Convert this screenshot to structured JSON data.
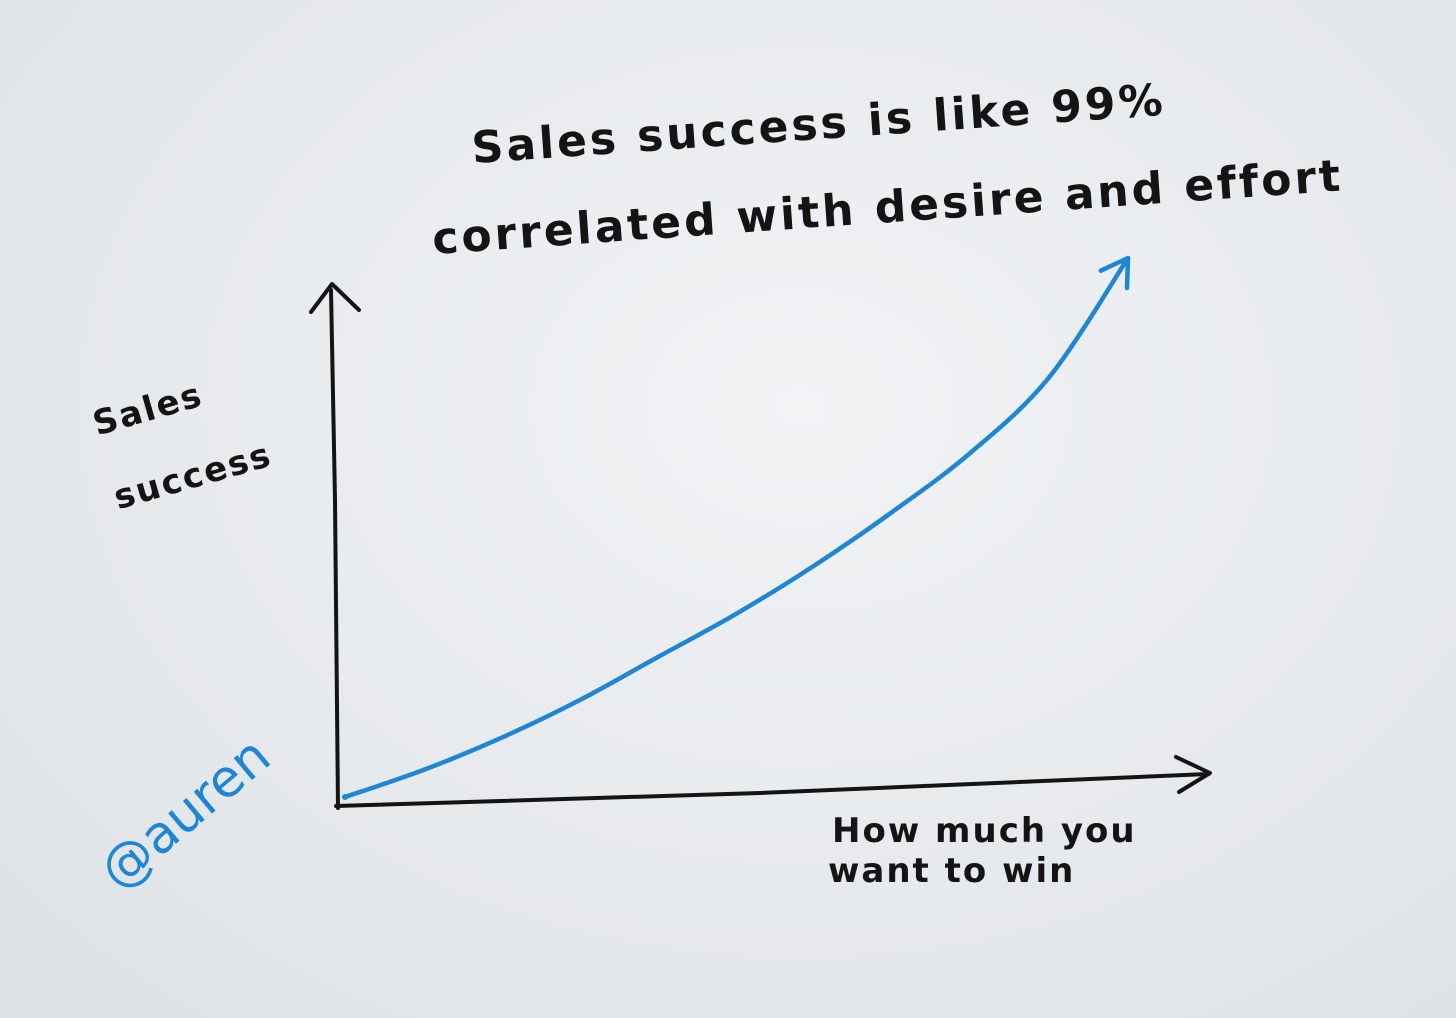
{
  "chart_data": {
    "type": "line",
    "title_lines": [
      "Sales success is like 99%",
      "correlated with desire and effort"
    ],
    "xlabel_lines": [
      "How much you",
      "want to win"
    ],
    "ylabel_lines": [
      "Sales",
      "success"
    ],
    "series": [
      {
        "color": "#1f86d6",
        "x": [
          0,
          0.1,
          0.2,
          0.3,
          0.4,
          0.5,
          0.6,
          0.7,
          0.8,
          0.9,
          1.0
        ],
        "y": [
          0,
          0.05,
          0.11,
          0.18,
          0.26,
          0.34,
          0.43,
          0.53,
          0.64,
          0.78,
          1.0
        ]
      }
    ],
    "xlim": [
      0,
      1.05
    ],
    "ylim": [
      0,
      1.05
    ],
    "grid": false,
    "arrowheads": true,
    "style": "hand-drawn"
  },
  "signature": "@auren",
  "colors": {
    "ink": "#141414",
    "curve": "#1f86d6",
    "paper": "#e9ecef"
  }
}
